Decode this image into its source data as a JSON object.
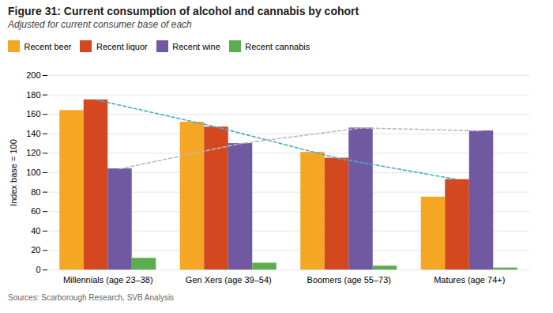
{
  "chart_data": {
    "type": "bar",
    "title": "Figure 31: Current consumption of alcohol and cannabis by cohort",
    "subtitle": "Adjusted for current consumer base of each",
    "caption": "Sources: Scarborough Research, SVB Analysis",
    "ylabel": "Index base = 100",
    "categories": [
      "Millennials (age 23–38)",
      "Gen Xers (age 39–54)",
      "Boomers (age 55–73)",
      "Matures (age 74+)"
    ],
    "series": [
      {
        "name": "Recent beer",
        "color": "#F5A623",
        "values": [
          164,
          152,
          121,
          75
        ]
      },
      {
        "name": "Recent liquor",
        "color": "#D44820",
        "values": [
          175,
          147,
          115,
          93
        ]
      },
      {
        "name": "Recent wine",
        "color": "#7059A0",
        "values": [
          104,
          130,
          146,
          143
        ]
      },
      {
        "name": "Recent cannabis",
        "color": "#5BAD4E",
        "values": [
          12,
          7,
          4,
          2
        ]
      }
    ],
    "lines": [
      {
        "bars": "Recent liquor",
        "color": "#4AAAC8",
        "line_style": "dashed",
        "values": [
          175,
          147,
          115,
          93
        ]
      },
      {
        "bars": "Recent wine",
        "color": "#BBBBBB",
        "line_style": "dashed",
        "values": [
          104,
          130,
          146,
          143
        ]
      }
    ],
    "ylim": [
      0,
      200
    ],
    "yticks": [
      0,
      20,
      40,
      60,
      80,
      100,
      120,
      140,
      160,
      180,
      200
    ],
    "grid": true,
    "legend": "top"
  }
}
